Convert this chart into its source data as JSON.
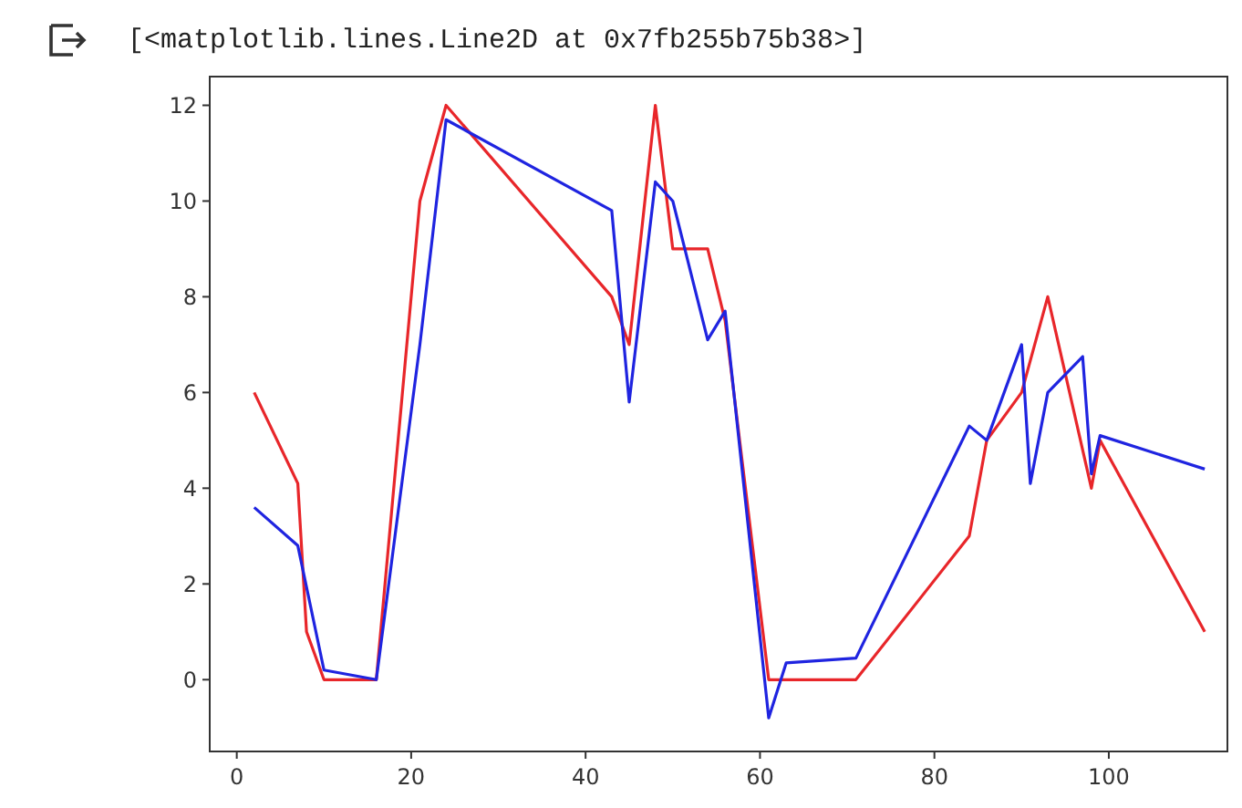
{
  "chart_data": {
    "type": "line",
    "annotations": [
      "[<matplotlib.lines.Line2D at 0x7fb255b75b38>]"
    ],
    "xlim": [
      -3.1,
      113.6
    ],
    "ylim": [
      -1.5,
      12.6
    ],
    "xticks": [
      0,
      20,
      40,
      60,
      80,
      100
    ],
    "yticks": [
      0,
      2,
      4,
      6,
      8,
      10,
      12
    ],
    "series": [
      {
        "color": "#e8262a",
        "x": [
          2,
          7,
          8,
          10,
          16,
          21,
          24,
          43,
          45,
          48,
          50,
          54,
          56,
          61,
          71,
          84,
          86,
          90,
          93,
          98,
          99,
          111
        ],
        "values": [
          6,
          4.1,
          1,
          0,
          0,
          10,
          12,
          8,
          7,
          12,
          9,
          9,
          7.5,
          0,
          0,
          3,
          5,
          6,
          8,
          4,
          5,
          1
        ]
      },
      {
        "color": "#1f24e0",
        "x": [
          2,
          7,
          10,
          16,
          21,
          24,
          43,
          45,
          48,
          50,
          54,
          56,
          61,
          63,
          71,
          84,
          86,
          90,
          91,
          93,
          97,
          98,
          99,
          111
        ],
        "values": [
          3.6,
          2.8,
          0.2,
          0,
          7,
          11.7,
          9.8,
          5.8,
          10.4,
          10,
          7.1,
          7.7,
          -0.8,
          0.35,
          0.45,
          5.3,
          5,
          7,
          4.1,
          6,
          6.75,
          4.3,
          5.1,
          4.4
        ]
      }
    ]
  }
}
